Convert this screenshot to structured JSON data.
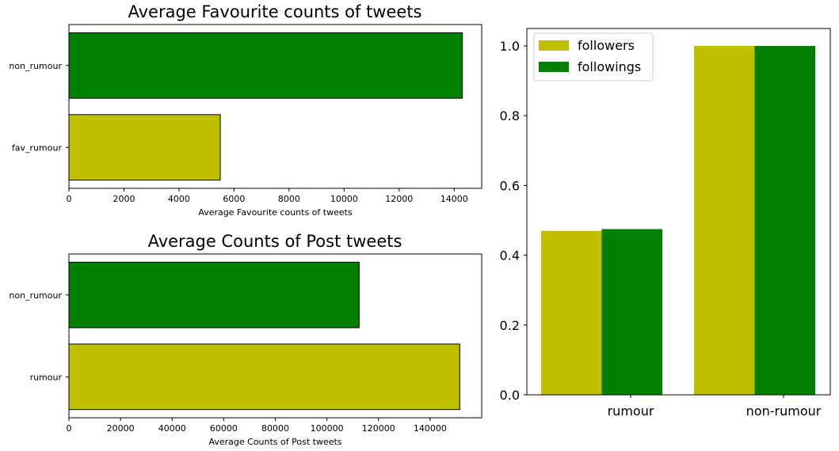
{
  "chart_data": [
    {
      "type": "bar",
      "orientation": "horizontal",
      "title": "Average Favourite counts of tweets",
      "xlabel": "Average Favourite counts of tweets",
      "ylabel": "",
      "categories": [
        "fav_rumour",
        "non_rumour"
      ],
      "values": [
        5500,
        14300
      ],
      "bar_colors": [
        "#bfbf00",
        "#008000"
      ],
      "xlim": [
        0,
        15000
      ],
      "xticks": [
        0,
        2000,
        4000,
        6000,
        8000,
        10000,
        12000,
        14000
      ],
      "grid": false
    },
    {
      "type": "bar",
      "orientation": "horizontal",
      "title": "Average Counts of Post tweets",
      "xlabel": "Average Counts of Post tweets",
      "ylabel": "",
      "categories": [
        "rumour",
        "non_rumour"
      ],
      "values": [
        151500,
        112500
      ],
      "bar_colors": [
        "#bfbf00",
        "#008000"
      ],
      "xlim": [
        0,
        160000
      ],
      "xticks": [
        0,
        20000,
        40000,
        60000,
        80000,
        100000,
        120000,
        140000
      ],
      "grid": false
    },
    {
      "type": "bar",
      "orientation": "vertical",
      "title": "",
      "xlabel": "",
      "ylabel": "",
      "categories": [
        "rumour",
        "non-rumour"
      ],
      "series": [
        {
          "name": "followers",
          "values": [
            0.47,
            1.0
          ],
          "color": "#bfbf00"
        },
        {
          "name": "followings",
          "values": [
            0.475,
            1.0
          ],
          "color": "#008000"
        }
      ],
      "ylim": [
        0,
        1.05
      ],
      "yticks": [
        "0.0",
        "0.2",
        "0.4",
        "0.6",
        "0.8",
        "1.0"
      ],
      "legend_position": "top-left",
      "grid": false
    }
  ]
}
